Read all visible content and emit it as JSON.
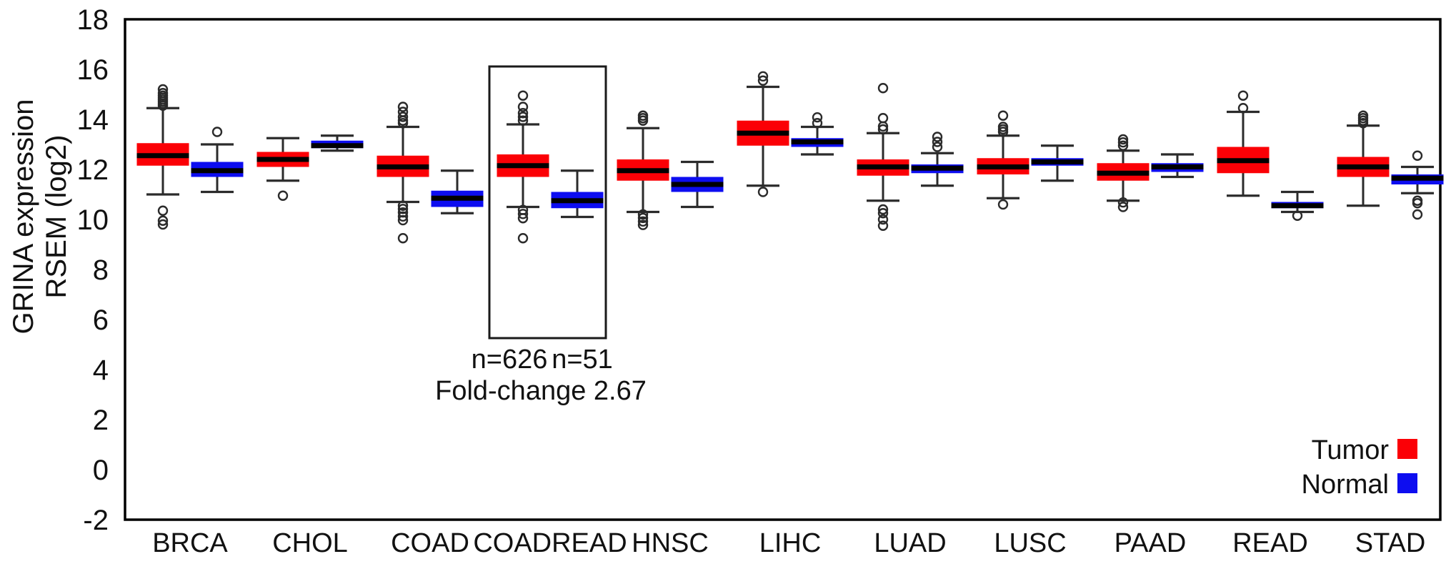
{
  "figure": {
    "y_axis_title_line1": "GRINA expression",
    "y_axis_title_line2": "RSEM (log2)"
  },
  "annotation": {
    "n_tumor": "n=626",
    "n_normal": "n=51",
    "fold_change": "Fold-change 2.67",
    "highlighted_category": "COADREAD"
  },
  "legend": {
    "tumor_label": "Tumor",
    "normal_label": "Normal",
    "tumor_color": "#fb0006",
    "normal_color": "#0d0df0"
  },
  "chart_data": {
    "type": "boxplot",
    "title": "",
    "ylabel": "GRINA expression RSEM (log2)",
    "ylim": [
      -2,
      18
    ],
    "yticks": [
      18,
      16,
      14,
      12,
      10,
      8,
      6,
      4,
      2,
      0,
      -2
    ],
    "grid": false,
    "legend_position": "bottom-right-inside",
    "series": [
      "Tumor",
      "Normal"
    ],
    "series_colors": {
      "tumor": "#fb0006",
      "normal": "#0d0df0"
    },
    "categories": [
      "BRCA",
      "CHOL",
      "COAD",
      "COADREAD",
      "HNSC",
      "LIHC",
      "LUAD",
      "LUSC",
      "PAAD",
      "READ",
      "STAD"
    ],
    "groups": [
      {
        "category": "BRCA",
        "tumor": {
          "whisker_low": 11.0,
          "q1": 12.15,
          "median": 12.55,
          "q3": 13.05,
          "whisker_high": 14.45,
          "outliers_high": [
            14.55,
            14.63,
            14.71,
            14.79,
            14.87,
            14.95,
            15.05,
            15.2
          ],
          "outliers_low": [
            10.35,
            9.95,
            9.8
          ]
        },
        "normal": {
          "whisker_low": 11.1,
          "q1": 11.7,
          "median": 11.95,
          "q3": 12.3,
          "whisker_high": 13.0,
          "outliers_high": [
            13.5
          ],
          "outliers_low": []
        }
      },
      {
        "category": "CHOL",
        "tumor": {
          "whisker_low": 11.55,
          "q1": 12.1,
          "median": 12.4,
          "q3": 12.7,
          "whisker_high": 13.25,
          "outliers_high": [],
          "outliers_low": [
            10.95
          ]
        },
        "normal": {
          "whisker_low": 12.75,
          "q1": 12.85,
          "median": 12.95,
          "q3": 13.15,
          "whisker_high": 13.35,
          "outliers_high": [],
          "outliers_low": []
        }
      },
      {
        "category": "COAD",
        "tumor": {
          "whisker_low": 10.7,
          "q1": 11.7,
          "median": 12.1,
          "q3": 12.55,
          "whisker_high": 13.7,
          "outliers_high": [
            13.85,
            13.95,
            14.1,
            14.3,
            14.5
          ],
          "outliers_low": [
            10.55,
            10.42,
            10.28,
            10.12,
            9.97,
            9.25
          ]
        },
        "normal": {
          "whisker_low": 10.25,
          "q1": 10.5,
          "median": 10.85,
          "q3": 11.15,
          "whisker_high": 11.95,
          "outliers_high": [],
          "outliers_low": []
        }
      },
      {
        "category": "COADREAD",
        "tumor": {
          "whisker_low": 10.5,
          "q1": 11.7,
          "median": 12.15,
          "q3": 12.6,
          "whisker_high": 13.8,
          "outliers_high": [
            13.95,
            14.1,
            14.25,
            14.5,
            14.95
          ],
          "outliers_low": [
            10.38,
            10.22,
            10.05,
            9.25
          ]
        },
        "normal": {
          "whisker_low": 10.1,
          "q1": 10.45,
          "median": 10.75,
          "q3": 11.1,
          "whisker_high": 11.95,
          "outliers_high": [],
          "outliers_low": []
        }
      },
      {
        "category": "HNSC",
        "tumor": {
          "whisker_low": 10.3,
          "q1": 11.55,
          "median": 11.95,
          "q3": 12.4,
          "whisker_high": 13.65,
          "outliers_high": [
            13.95,
            14.05,
            14.15
          ],
          "outliers_low": [
            10.2,
            10.06,
            9.92,
            9.78
          ]
        },
        "normal": {
          "whisker_low": 10.5,
          "q1": 11.1,
          "median": 11.4,
          "q3": 11.7,
          "whisker_high": 12.3,
          "outliers_high": [],
          "outliers_low": []
        }
      },
      {
        "category": "LIHC",
        "tumor": {
          "whisker_low": 11.35,
          "q1": 12.95,
          "median": 13.45,
          "q3": 13.95,
          "whisker_high": 15.3,
          "outliers_high": [
            15.55,
            15.72
          ],
          "outliers_low": [
            11.1
          ]
        },
        "normal": {
          "whisker_low": 12.6,
          "q1": 12.9,
          "median": 13.1,
          "q3": 13.25,
          "whisker_high": 13.7,
          "outliers_high": [
            13.85,
            14.08
          ],
          "outliers_low": []
        }
      },
      {
        "category": "LUAD",
        "tumor": {
          "whisker_low": 10.75,
          "q1": 11.75,
          "median": 12.1,
          "q3": 12.4,
          "whisker_high": 13.45,
          "outliers_high": [
            13.6,
            13.72,
            14.05,
            15.25
          ],
          "outliers_low": [
            10.4,
            10.25,
            10.0,
            9.75
          ]
        },
        "normal": {
          "whisker_low": 11.35,
          "q1": 11.85,
          "median": 12.05,
          "q3": 12.2,
          "whisker_high": 12.65,
          "outliers_high": [
            12.9,
            13.1,
            13.3
          ],
          "outliers_low": []
        }
      },
      {
        "category": "LUSC",
        "tumor": {
          "whisker_low": 10.85,
          "q1": 11.8,
          "median": 12.1,
          "q3": 12.45,
          "whisker_high": 13.35,
          "outliers_high": [
            13.5,
            13.6,
            13.7,
            14.15
          ],
          "outliers_low": [
            10.6
          ]
        },
        "normal": {
          "whisker_low": 11.55,
          "q1": 12.15,
          "median": 12.3,
          "q3": 12.45,
          "whisker_high": 12.95,
          "outliers_high": [],
          "outliers_low": []
        }
      },
      {
        "category": "PAAD",
        "tumor": {
          "whisker_low": 10.75,
          "q1": 11.55,
          "median": 11.85,
          "q3": 12.25,
          "whisker_high": 12.75,
          "outliers_high": [
            12.95,
            13.08,
            13.2
          ],
          "outliers_low": [
            10.68,
            10.5
          ]
        },
        "normal": {
          "whisker_low": 11.7,
          "q1": 11.9,
          "median": 12.1,
          "q3": 12.25,
          "whisker_high": 12.6,
          "outliers_high": [],
          "outliers_low": []
        }
      },
      {
        "category": "READ",
        "tumor": {
          "whisker_low": 10.95,
          "q1": 11.85,
          "median": 12.35,
          "q3": 12.9,
          "whisker_high": 14.3,
          "outliers_high": [
            14.45,
            14.95
          ],
          "outliers_low": []
        },
        "normal": {
          "whisker_low": 10.3,
          "q1": 10.45,
          "median": 10.55,
          "q3": 10.7,
          "whisker_high": 11.1,
          "outliers_high": [],
          "outliers_low": [
            10.15
          ]
        }
      },
      {
        "category": "STAD",
        "tumor": {
          "whisker_low": 10.55,
          "q1": 11.7,
          "median": 12.1,
          "q3": 12.5,
          "whisker_high": 13.75,
          "outliers_high": [
            13.85,
            13.95,
            14.05,
            14.15
          ],
          "outliers_low": []
        },
        "normal": {
          "whisker_low": 11.05,
          "q1": 11.4,
          "median": 11.65,
          "q3": 11.8,
          "whisker_high": 12.1,
          "outliers_high": [
            12.55
          ],
          "outliers_low": [
            10.75,
            10.65,
            10.2
          ]
        }
      }
    ]
  }
}
